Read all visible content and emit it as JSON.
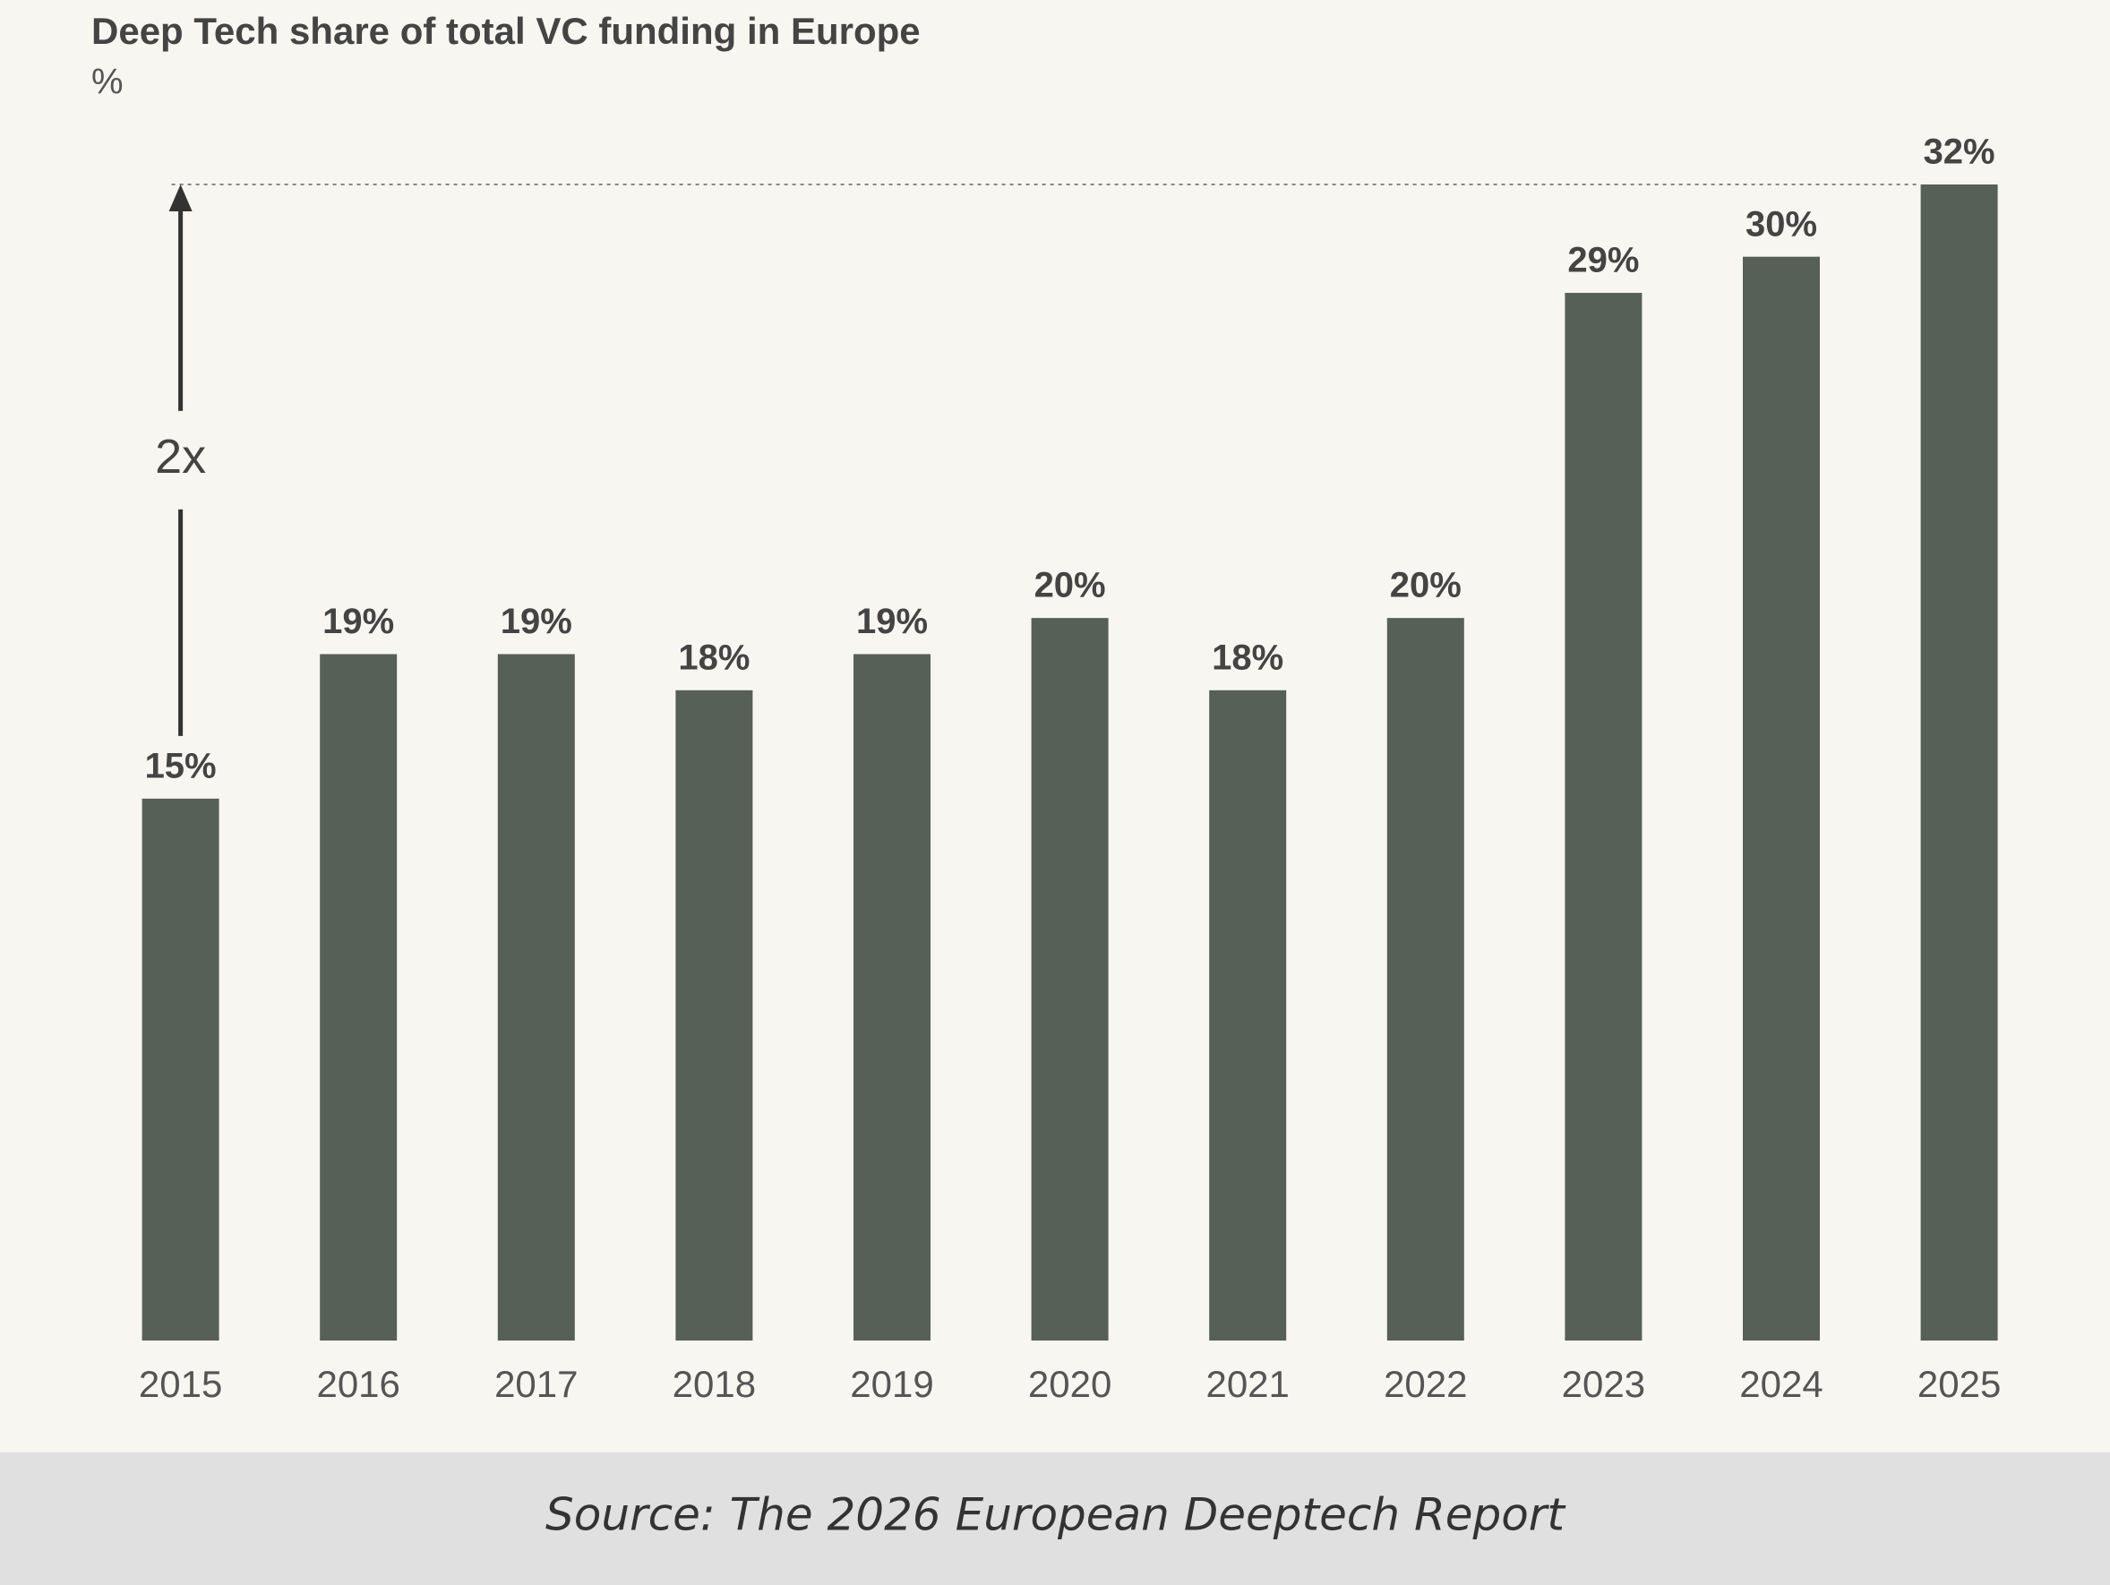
{
  "chart_data": {
    "type": "bar",
    "title": "Deep Tech share of total VC funding in Europe",
    "subtitle": "%",
    "categories": [
      "2015",
      "2016",
      "2017",
      "2018",
      "2019",
      "2020",
      "2021",
      "2022",
      "2023",
      "2024",
      "2025"
    ],
    "values": [
      15,
      19,
      19,
      18,
      19,
      20,
      18,
      20,
      29,
      30,
      32
    ],
    "value_labels": [
      "15%",
      "19%",
      "19%",
      "18%",
      "19%",
      "20%",
      "18%",
      "20%",
      "29%",
      "30%",
      "32%"
    ],
    "color": "#566057",
    "annotation": "2x",
    "source": "Source: The 2026 European Deeptech Report"
  }
}
